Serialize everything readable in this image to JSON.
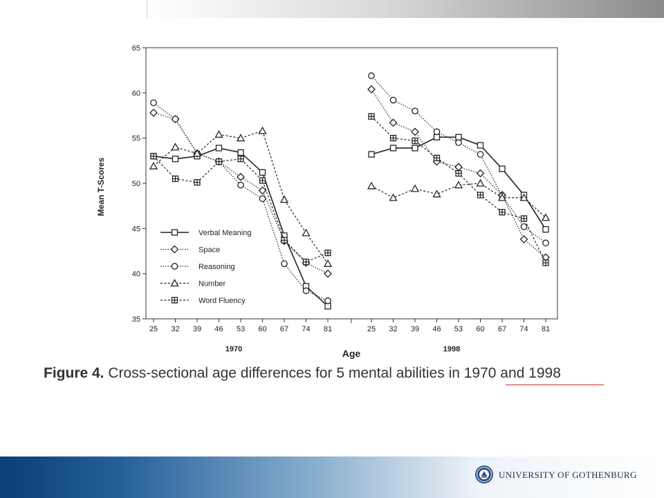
{
  "caption": {
    "label": "Figure 4.",
    "text": "Cross-sectional age differences for 5 mental abilities in 1970 and 1998"
  },
  "footer": {
    "university": "UNIVERSITY OF GOTHENBURG"
  },
  "colors": {
    "footer_dark": "#0a3f78",
    "caption_underline": "#d0281e",
    "series": "#222222"
  },
  "chart_data": {
    "type": "line",
    "title": "",
    "xlabel": "Age",
    "ylabel": "Mean T-Scores",
    "ylim": [
      35,
      65
    ],
    "yticks": [
      35,
      40,
      45,
      50,
      55,
      60,
      65
    ],
    "x": [
      25,
      32,
      39,
      46,
      53,
      60,
      67,
      74,
      81
    ],
    "grid": false,
    "legend_position": "bottom-left of 1970 panel",
    "panels": [
      {
        "name": "1970",
        "series": [
          {
            "name": "Verbal Meaning",
            "marker": "square",
            "style": "solid",
            "values": [
              53.0,
              52.7,
              53.0,
              53.9,
              53.4,
              51.2,
              44.2,
              38.6,
              36.4
            ]
          },
          {
            "name": "Space",
            "marker": "diamond",
            "style": "dotted",
            "values": [
              57.8,
              57.1,
              53.3,
              52.4,
              50.7,
              49.2,
              43.6,
              41.2,
              40.0
            ]
          },
          {
            "name": "Reasoning",
            "marker": "circle",
            "style": "dotted",
            "values": [
              58.9,
              57.1,
              53.3,
              52.4,
              49.8,
              48.3,
              41.1,
              38.1,
              37.0
            ]
          },
          {
            "name": "Number",
            "marker": "triangle",
            "style": "dashed",
            "values": [
              51.9,
              54.0,
              53.3,
              55.4,
              55.0,
              55.8,
              48.2,
              44.5,
              41.1
            ]
          },
          {
            "name": "Word Fluency",
            "marker": "square-plus",
            "style": "dashed",
            "values": [
              53.0,
              50.5,
              50.1,
              52.4,
              52.7,
              50.3,
              43.7,
              41.3,
              42.3
            ]
          }
        ]
      },
      {
        "name": "1998",
        "series": [
          {
            "name": "Verbal Meaning",
            "marker": "square",
            "style": "solid",
            "values": [
              53.2,
              53.9,
              53.9,
              55.1,
              55.1,
              54.2,
              51.6,
              48.7,
              44.9
            ]
          },
          {
            "name": "Space",
            "marker": "diamond",
            "style": "dotted",
            "values": [
              60.4,
              56.7,
              55.7,
              52.4,
              51.8,
              51.1,
              48.7,
              43.8,
              41.8
            ]
          },
          {
            "name": "Reasoning",
            "marker": "circle",
            "style": "dotted",
            "values": [
              61.9,
              59.2,
              58.0,
              55.7,
              54.5,
              53.2,
              48.6,
              45.2,
              43.4
            ]
          },
          {
            "name": "Number",
            "marker": "triangle",
            "style": "dashed",
            "values": [
              49.7,
              48.4,
              49.4,
              48.8,
              49.8,
              50.0,
              48.4,
              48.4,
              46.2
            ]
          },
          {
            "name": "Word Fluency",
            "marker": "square-plus",
            "style": "dashed",
            "values": [
              57.4,
              55.0,
              54.7,
              52.8,
              51.1,
              48.7,
              46.8,
              46.1,
              41.2
            ]
          }
        ]
      }
    ]
  }
}
